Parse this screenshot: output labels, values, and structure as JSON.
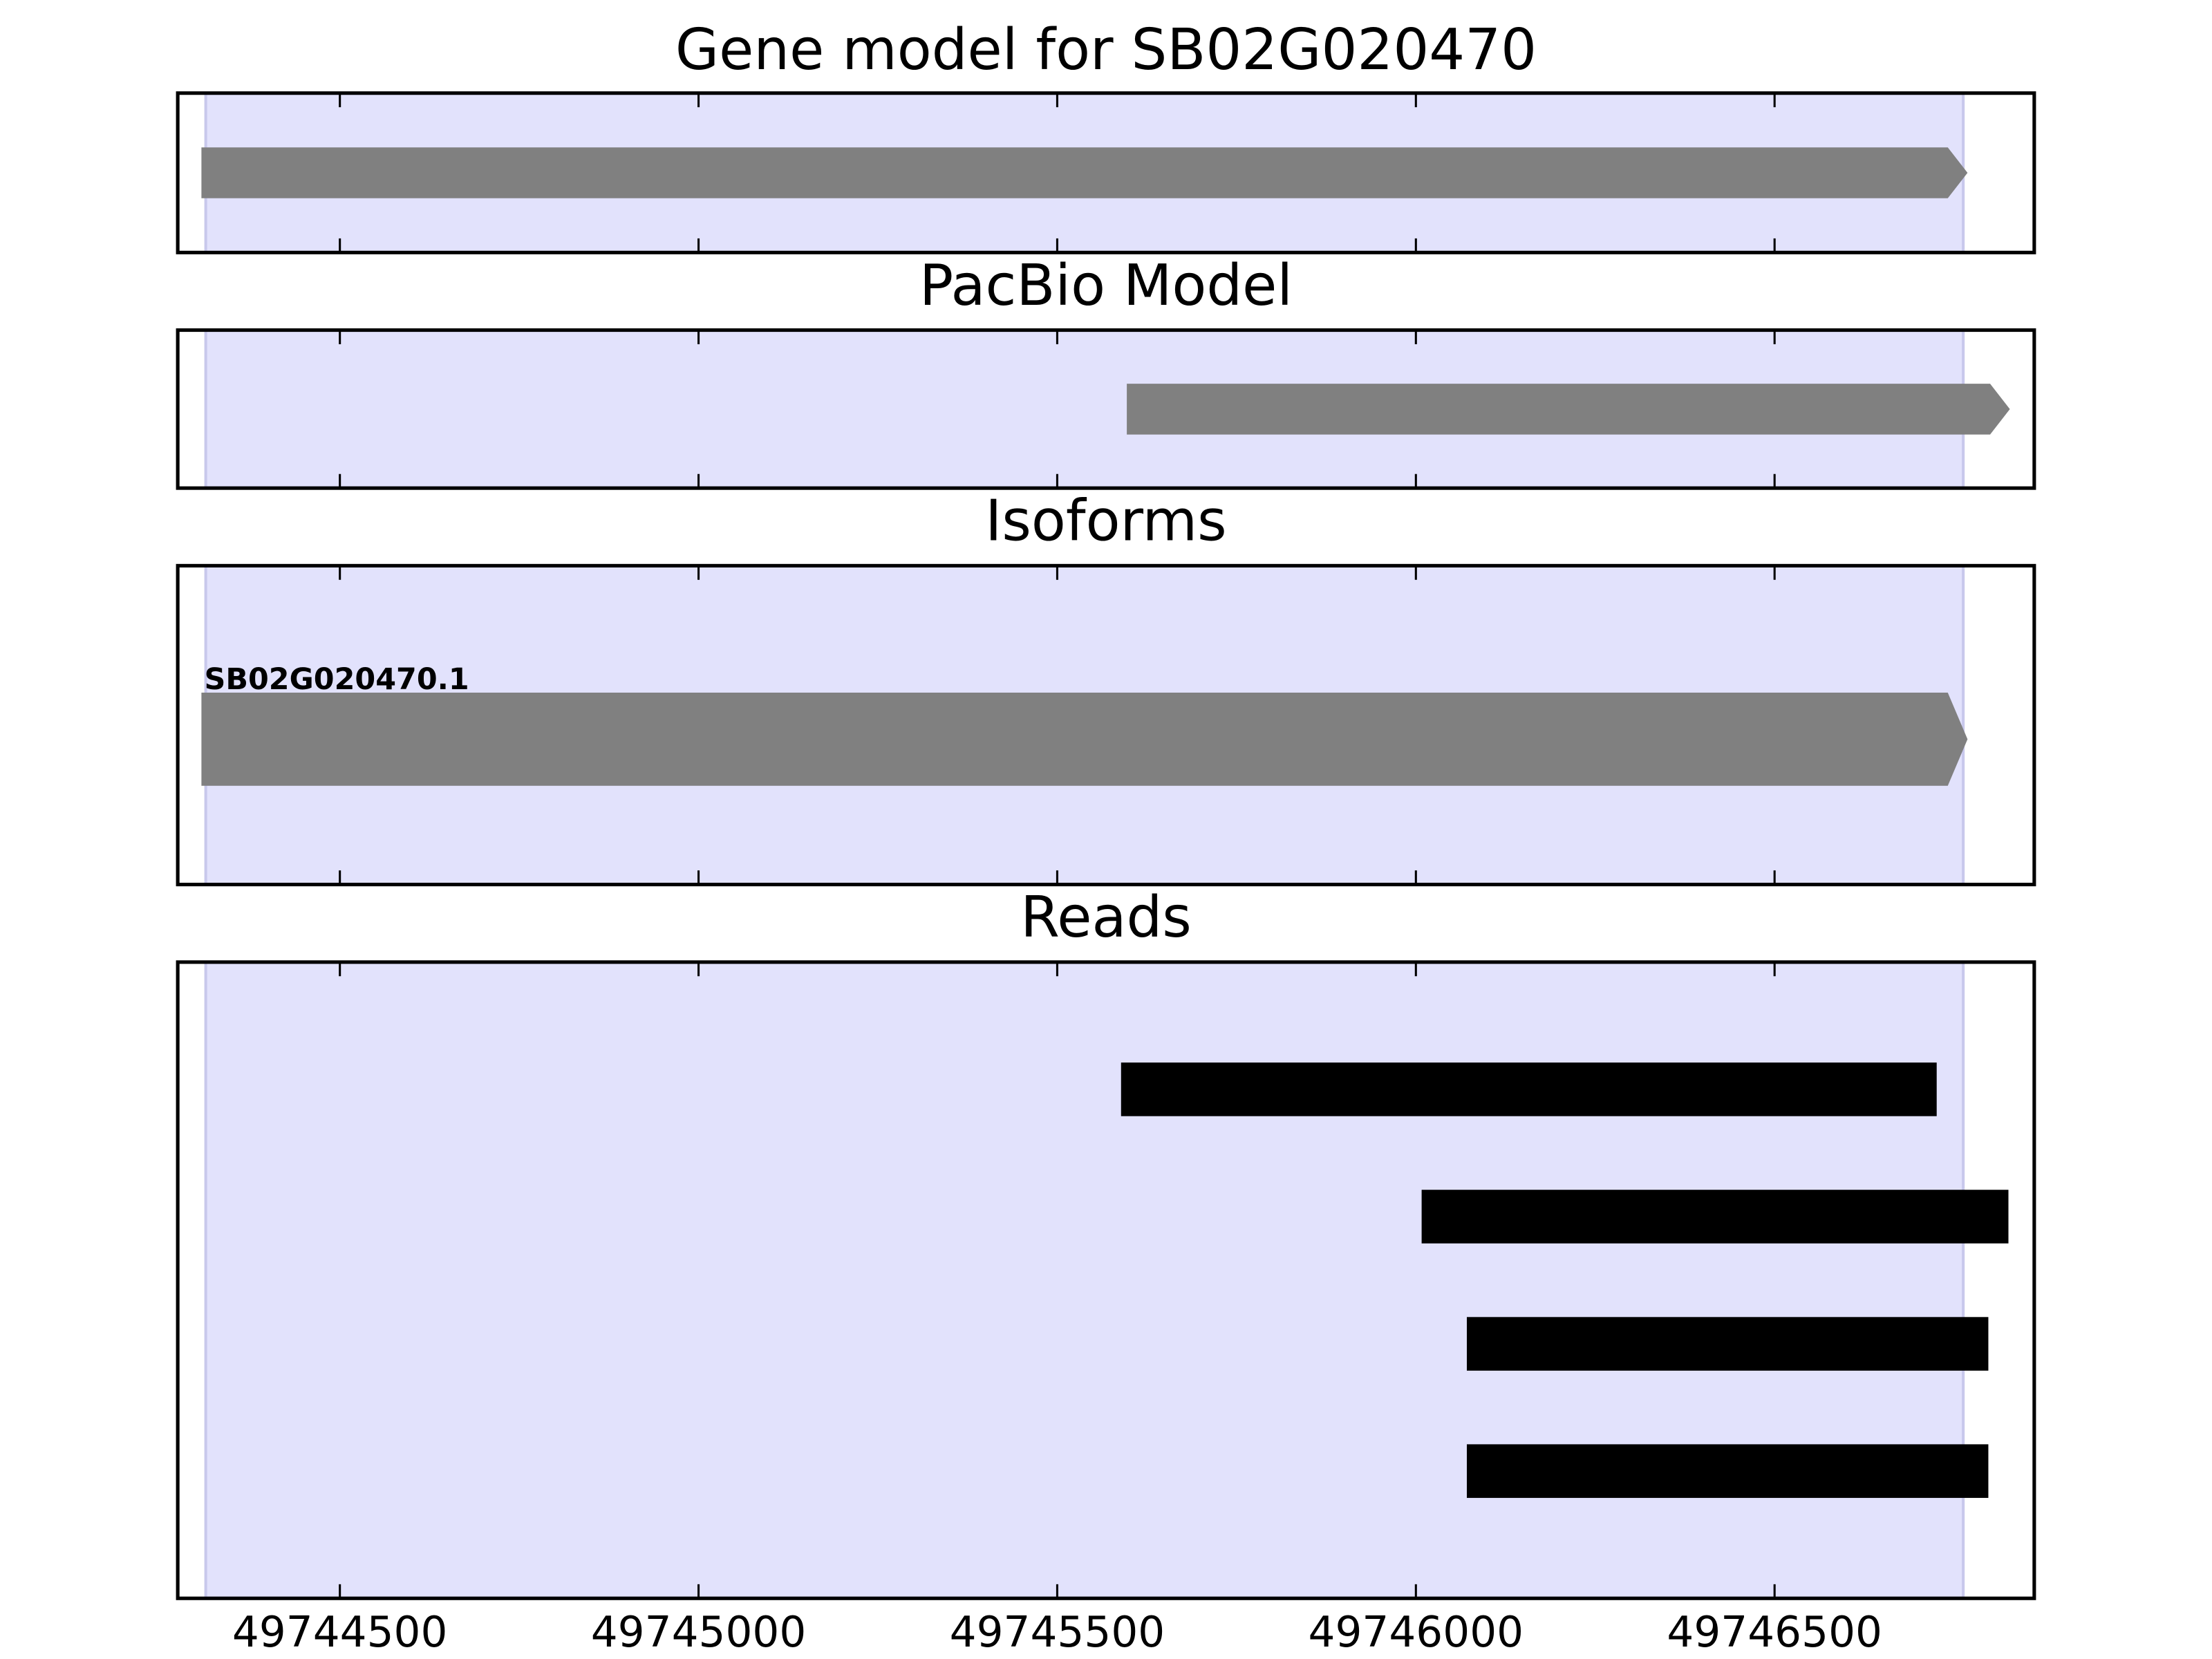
{
  "chart_data": [
    {
      "type": "gene",
      "title": "Gene model for SB02G020470",
      "color": "#808080",
      "highlight": {
        "start": 49744313,
        "end": 49746763,
        "color": "#e2e2fc"
      },
      "features": [
        {
          "start": 49744307,
          "end": 49746769
        }
      ],
      "xlim": [
        49744274,
        49746862
      ],
      "xticks": [
        49744500,
        49745000,
        49745500,
        49746000,
        49746500
      ]
    },
    {
      "type": "gene",
      "title": "PacBio Model",
      "color": "#808080",
      "highlight": {
        "start": 49744313,
        "end": 49746763,
        "color": "#e2e2fc"
      },
      "features": [
        {
          "start": 49745597,
          "end": 49746828
        }
      ],
      "xlim": [
        49744274,
        49746862
      ],
      "xticks": [
        49744500,
        49745000,
        49745500,
        49746000,
        49746500
      ]
    },
    {
      "type": "isoform",
      "title": "Isoforms",
      "color": "#808080",
      "highlight": {
        "start": 49744313,
        "end": 49746763,
        "color": "#e2e2fc"
      },
      "features": [
        {
          "label": "SB02G020470.1",
          "start": 49744307,
          "end": 49746769
        }
      ],
      "xlim": [
        49744274,
        49746862
      ],
      "xticks": [
        49744500,
        49745000,
        49745500,
        49746000,
        49746500
      ]
    },
    {
      "type": "reads",
      "title": "Reads",
      "color": "#000000",
      "highlight": {
        "start": 49744313,
        "end": 49746763,
        "color": "#e2e2fc"
      },
      "features": [
        {
          "start": 49745589,
          "end": 49746726
        },
        {
          "start": 49746008,
          "end": 49746826
        },
        {
          "start": 49746071,
          "end": 49746798
        },
        {
          "start": 49746071,
          "end": 49746798
        }
      ],
      "xlim": [
        49744274,
        49746862
      ],
      "xticks": [
        49744500,
        49745000,
        49745500,
        49746000,
        49746500
      ],
      "show_tick_labels": true
    }
  ]
}
